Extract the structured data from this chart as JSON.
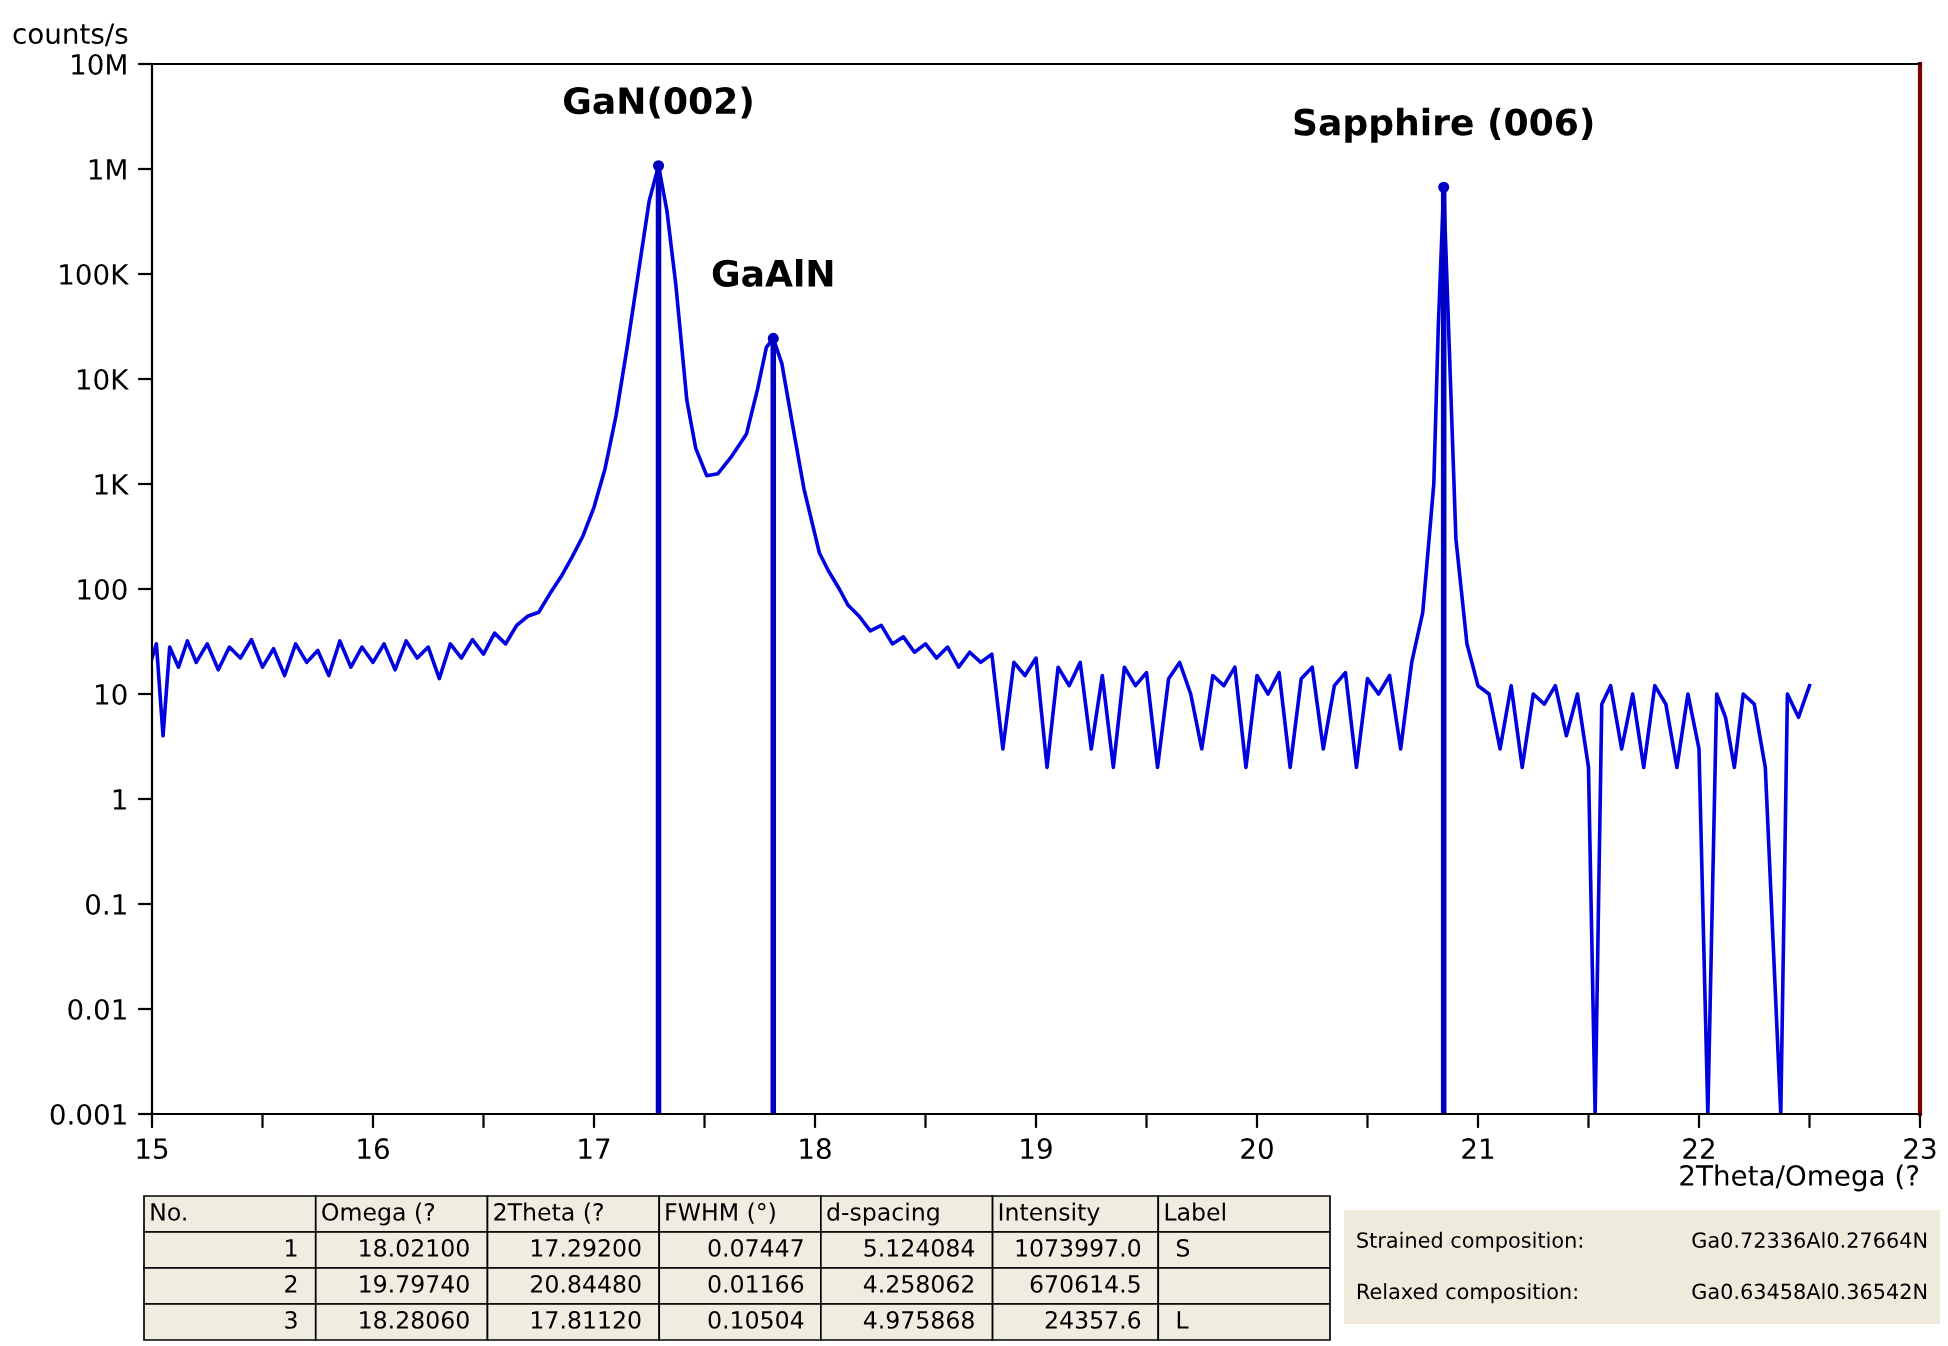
{
  "chart_data": {
    "type": "line",
    "xlabel": "2Theta/Omega (?",
    "ylabel": "counts/s",
    "log": "y",
    "xlim": [
      15,
      23
    ],
    "xticks": [
      15,
      {
        "value": 15.5,
        "label": null
      },
      16,
      {
        "value": 16.5,
        "label": null
      },
      17,
      {
        "value": 17.5,
        "label": null
      },
      18,
      {
        "value": 18.5,
        "label": null
      },
      19,
      {
        "value": 19.5,
        "label": null
      },
      20,
      {
        "value": 20.5,
        "label": null
      },
      21,
      {
        "value": 21.5,
        "label": null
      },
      22,
      {
        "value": 22.5,
        "label": null
      },
      23
    ],
    "ylim": [
      0.001,
      10000000
    ],
    "yticks": [
      0.001,
      0.01,
      0.1,
      1,
      10,
      100,
      {
        "value": 1000,
        "label": "1K"
      },
      {
        "value": 10000,
        "label": "10K"
      },
      {
        "value": 100000,
        "label": "100K"
      },
      {
        "value": 1000000,
        "label": "1M"
      },
      {
        "value": 10000000,
        "label": "10M"
      }
    ],
    "grid": false,
    "marker": "none",
    "line_style": "solid",
    "series": [
      {
        "color": "#0000e0",
        "x": [
          15.0,
          15.02,
          15.05,
          15.08,
          15.12,
          15.16,
          15.2,
          15.25,
          15.3,
          15.35,
          15.4,
          15.45,
          15.5,
          15.55,
          15.6,
          15.65,
          15.7,
          15.75,
          15.8,
          15.85,
          15.9,
          15.95,
          16.0,
          16.05,
          16.1,
          16.15,
          16.2,
          16.25,
          16.3,
          16.35,
          16.4,
          16.45,
          16.5,
          16.55,
          16.6,
          16.65,
          16.7,
          16.75,
          16.8,
          16.85,
          16.9,
          16.95,
          17.0,
          17.05,
          17.1,
          17.15,
          17.2,
          17.25,
          17.292,
          17.33,
          17.37,
          17.42,
          17.46,
          17.51,
          17.56,
          17.62,
          17.69,
          17.74,
          17.78,
          17.8112,
          17.85,
          17.9,
          17.95,
          18.02,
          18.06,
          18.11,
          18.15,
          18.2,
          18.25,
          18.3,
          18.35,
          18.4,
          18.45,
          18.5,
          18.55,
          18.6,
          18.65,
          18.7,
          18.75,
          18.8,
          18.85,
          18.9,
          18.95,
          19.0,
          19.05,
          19.1,
          19.15,
          19.2,
          19.25,
          19.3,
          19.35,
          19.4,
          19.45,
          19.5,
          19.55,
          19.6,
          19.65,
          19.7,
          19.75,
          19.8,
          19.85,
          19.9,
          19.95,
          20.0,
          20.05,
          20.1,
          20.15,
          20.2,
          20.25,
          20.3,
          20.35,
          20.4,
          20.45,
          20.5,
          20.55,
          20.6,
          20.65,
          20.7,
          20.75,
          20.8,
          20.82,
          20.8448,
          20.87,
          20.9,
          20.95,
          21.0,
          21.05,
          21.1,
          21.15,
          21.2,
          21.25,
          21.3,
          21.35,
          21.4,
          21.45,
          21.5,
          21.53,
          21.56,
          21.6,
          21.65,
          21.7,
          21.75,
          21.8,
          21.85,
          21.9,
          21.95,
          22.0,
          22.04,
          22.08,
          22.12,
          22.16,
          22.2,
          22.25,
          22.3,
          22.37,
          22.4,
          22.45,
          22.5
        ],
        "values": [
          22,
          30,
          4,
          28,
          18,
          32,
          20,
          30,
          17,
          28,
          22,
          33,
          18,
          27,
          15,
          30,
          20,
          26,
          15,
          32,
          18,
          28,
          20,
          30,
          17,
          32,
          22,
          28,
          14,
          30,
          22,
          33,
          24,
          38,
          30,
          45,
          55,
          60,
          90,
          130,
          200,
          320,
          600,
          1400,
          4500,
          20000,
          100000,
          500000,
          1073997,
          400000,
          80000,
          6300,
          2200,
          1200,
          1250,
          1800,
          3000,
          8000,
          20000,
          24357.6,
          14000,
          3500,
          900,
          220,
          150,
          100,
          70,
          55,
          40,
          45,
          30,
          35,
          25,
          30,
          22,
          28,
          18,
          25,
          20,
          24,
          3,
          20,
          15,
          22,
          2,
          18,
          12,
          20,
          3,
          15,
          2,
          18,
          12,
          16,
          2,
          14,
          20,
          10,
          3,
          15,
          12,
          18,
          2,
          15,
          10,
          16,
          2,
          14,
          18,
          3,
          12,
          16,
          2,
          14,
          10,
          15,
          3,
          20,
          60,
          1000,
          30000,
          670614.5,
          20000,
          300,
          30,
          12,
          10,
          3,
          12,
          2,
          10,
          8,
          12,
          4,
          10,
          2,
          0.001,
          8,
          12,
          3,
          10,
          2,
          12,
          8,
          2,
          10,
          3,
          0.001,
          10,
          6,
          2,
          10,
          8,
          2,
          0.001,
          10,
          6,
          12
        ]
      },
      {
        "type": "lollipop",
        "marker": "circle",
        "color": "#0000c0",
        "x": [
          17.292,
          20.8448,
          17.8112
        ],
        "values": [
          1073997.0,
          670614.5,
          24357.6
        ]
      }
    ],
    "annotations": [
      {
        "text": "GaN(002)",
        "x": 17.292,
        "y": 1073997.0
      },
      {
        "text": "GaAlN",
        "x": 17.8112,
        "y": 24357.6
      },
      {
        "text": "Sapphire (006)",
        "x": 20.8448,
        "y": 670614.5
      },
      "No.",
      "Omega (?",
      "2Theta (?",
      "FWHM (°)",
      "d-spacing",
      "Intensity",
      "Label",
      "1",
      "18.02100",
      "17.29200",
      "0.07447",
      "5.124084",
      "1073997.0",
      "S",
      "2",
      "19.79740",
      "20.84480",
      "0.01166",
      "4.258062",
      "670614.5",
      null,
      "3",
      "18.28060",
      "17.81120",
      "0.10504",
      "4.975868",
      "24357.6",
      "L",
      "Strained composition:",
      "Ga0.72336Al0.27664N",
      "Relaxed composition:",
      "Ga0.63458Al0.36542N"
    ]
  }
}
